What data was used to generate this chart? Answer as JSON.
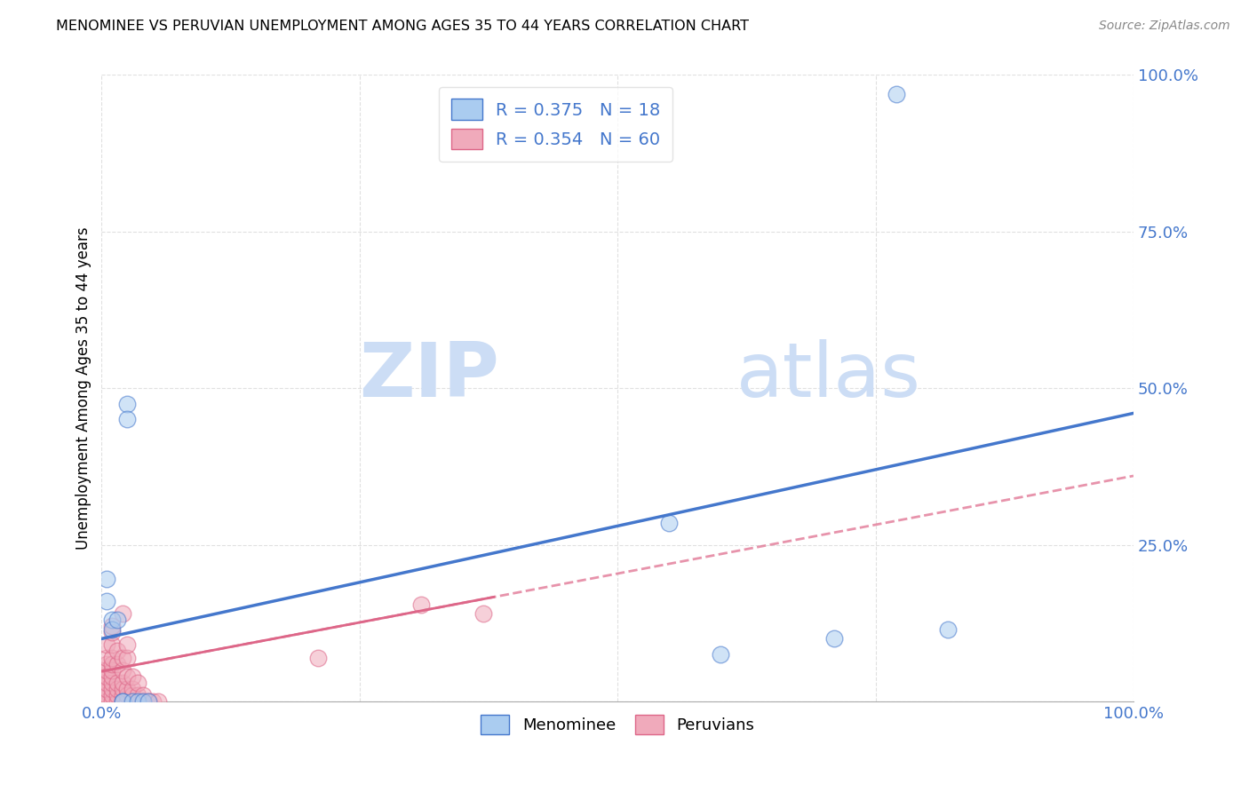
{
  "title": "MENOMINEE VS PERUVIAN UNEMPLOYMENT AMONG AGES 35 TO 44 YEARS CORRELATION CHART",
  "source": "Source: ZipAtlas.com",
  "ylabel": "Unemployment Among Ages 35 to 44 years",
  "xlim": [
    0,
    1.0
  ],
  "ylim": [
    0,
    1.0
  ],
  "grid_color": "#cccccc",
  "background_color": "#ffffff",
  "menominee_color": "#aaccf0",
  "peruvian_color": "#f0aabb",
  "menominee_line_color": "#4477cc",
  "peruvian_line_color": "#dd6688",
  "legend_R_menominee": "R = 0.375",
  "legend_N_menominee": "N = 18",
  "legend_R_peruvian": "R = 0.354",
  "legend_N_peruvian": "N = 60",
  "menominee_trendline_x0": 0.0,
  "menominee_trendline_y0": 0.1,
  "menominee_trendline_x1": 1.0,
  "menominee_trendline_y1": 0.46,
  "peruvian_trendline_x0": 0.0,
  "peruvian_trendline_y0": 0.048,
  "peruvian_trendline_x1": 1.0,
  "peruvian_trendline_y1": 0.36,
  "menominee_scatter_x": [
    0.005,
    0.005,
    0.01,
    0.01,
    0.015,
    0.02,
    0.02,
    0.025,
    0.025,
    0.03,
    0.035,
    0.04,
    0.045,
    0.55,
    0.6,
    0.71,
    0.77,
    0.82
  ],
  "menominee_scatter_y": [
    0.195,
    0.16,
    0.13,
    0.115,
    0.13,
    0.0,
    0.0,
    0.475,
    0.45,
    0.0,
    0.0,
    0.0,
    0.0,
    0.285,
    0.075,
    0.1,
    0.97,
    0.115
  ],
  "peruvian_scatter_x": [
    0.0,
    0.0,
    0.0,
    0.0,
    0.0,
    0.0,
    0.005,
    0.005,
    0.005,
    0.005,
    0.005,
    0.005,
    0.005,
    0.005,
    0.005,
    0.01,
    0.01,
    0.01,
    0.01,
    0.01,
    0.01,
    0.01,
    0.01,
    0.01,
    0.01,
    0.01,
    0.015,
    0.015,
    0.015,
    0.015,
    0.015,
    0.015,
    0.02,
    0.02,
    0.02,
    0.02,
    0.02,
    0.02,
    0.02,
    0.025,
    0.025,
    0.025,
    0.025,
    0.025,
    0.025,
    0.03,
    0.03,
    0.03,
    0.03,
    0.035,
    0.035,
    0.035,
    0.04,
    0.04,
    0.045,
    0.05,
    0.055,
    0.21,
    0.31,
    0.37
  ],
  "peruvian_scatter_y": [
    0.0,
    0.01,
    0.02,
    0.03,
    0.04,
    0.05,
    0.0,
    0.01,
    0.02,
    0.03,
    0.04,
    0.05,
    0.06,
    0.07,
    0.09,
    0.0,
    0.01,
    0.02,
    0.03,
    0.04,
    0.05,
    0.06,
    0.07,
    0.09,
    0.11,
    0.12,
    0.0,
    0.01,
    0.02,
    0.03,
    0.06,
    0.08,
    0.0,
    0.01,
    0.02,
    0.03,
    0.05,
    0.07,
    0.14,
    0.0,
    0.01,
    0.02,
    0.04,
    0.07,
    0.09,
    0.0,
    0.01,
    0.02,
    0.04,
    0.0,
    0.01,
    0.03,
    0.0,
    0.01,
    0.0,
    0.0,
    0.0,
    0.07,
    0.155,
    0.14
  ]
}
